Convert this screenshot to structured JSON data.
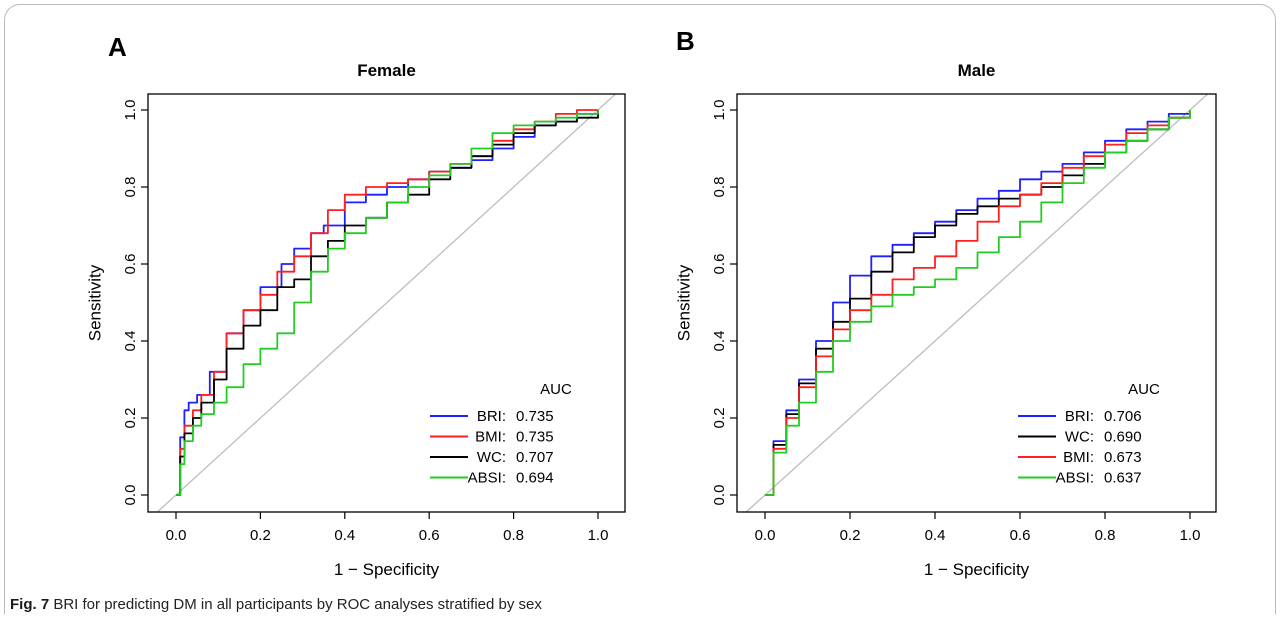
{
  "caption": {
    "label": "Fig. 7",
    "text": "BRI for predicting DM in all participants by ROC analyses stratified by sex"
  },
  "colors": {
    "BRI": "#1f1fff",
    "BMI": "#ff1f1f",
    "WC": "#000000",
    "ABSI": "#22cc22",
    "diagonal": "#bdbdbd"
  },
  "chart_data": [
    {
      "type": "line",
      "panel": "A",
      "title": "Female",
      "xlabel": "1 − Specificity",
      "ylabel": "Sensitivity",
      "xlim": [
        0,
        1
      ],
      "ylim": [
        0,
        1
      ],
      "xticks": [
        "0.0",
        "0.2",
        "0.4",
        "0.6",
        "0.8",
        "1.0"
      ],
      "yticks": [
        "0.0",
        "0.2",
        "0.4",
        "0.6",
        "0.8",
        "1.0"
      ],
      "legend": {
        "title": "AUC",
        "position": "bottom-right"
      },
      "diagonal": true,
      "series": [
        {
          "name": "BRI",
          "auc": "0.735",
          "color": "#1f1fff",
          "x": [
            0,
            0.01,
            0.02,
            0.03,
            0.05,
            0.08,
            0.12,
            0.16,
            0.2,
            0.25,
            0.28,
            0.32,
            0.35,
            0.4,
            0.45,
            0.5,
            0.55,
            0.6,
            0.65,
            0.7,
            0.75,
            0.8,
            0.85,
            0.9,
            0.95,
            1.0
          ],
          "y": [
            0,
            0.15,
            0.22,
            0.24,
            0.26,
            0.32,
            0.42,
            0.48,
            0.54,
            0.6,
            0.64,
            0.68,
            0.7,
            0.76,
            0.78,
            0.8,
            0.82,
            0.84,
            0.85,
            0.87,
            0.9,
            0.93,
            0.96,
            0.97,
            0.99,
            1.0
          ]
        },
        {
          "name": "BMI",
          "auc": "0.735",
          "color": "#ff1f1f",
          "x": [
            0,
            0.01,
            0.02,
            0.04,
            0.06,
            0.09,
            0.12,
            0.16,
            0.2,
            0.24,
            0.28,
            0.32,
            0.36,
            0.4,
            0.45,
            0.5,
            0.55,
            0.6,
            0.65,
            0.7,
            0.75,
            0.8,
            0.85,
            0.9,
            0.95,
            1.0
          ],
          "y": [
            0,
            0.12,
            0.18,
            0.22,
            0.26,
            0.32,
            0.42,
            0.48,
            0.52,
            0.58,
            0.62,
            0.68,
            0.74,
            0.78,
            0.8,
            0.81,
            0.82,
            0.84,
            0.86,
            0.88,
            0.92,
            0.95,
            0.97,
            0.99,
            1.0,
            1.0
          ]
        },
        {
          "name": "WC",
          "auc": "0.707",
          "color": "#000000",
          "x": [
            0,
            0.01,
            0.02,
            0.04,
            0.06,
            0.09,
            0.12,
            0.16,
            0.2,
            0.24,
            0.28,
            0.32,
            0.36,
            0.4,
            0.45,
            0.5,
            0.55,
            0.6,
            0.65,
            0.7,
            0.75,
            0.8,
            0.85,
            0.9,
            0.95,
            1.0
          ],
          "y": [
            0,
            0.1,
            0.16,
            0.2,
            0.24,
            0.3,
            0.38,
            0.44,
            0.48,
            0.54,
            0.56,
            0.62,
            0.66,
            0.7,
            0.72,
            0.76,
            0.78,
            0.82,
            0.85,
            0.88,
            0.91,
            0.94,
            0.96,
            0.97,
            0.98,
            1.0
          ]
        },
        {
          "name": "ABSI",
          "auc": "0.694",
          "color": "#22cc22",
          "x": [
            0,
            0.01,
            0.02,
            0.04,
            0.06,
            0.09,
            0.12,
            0.16,
            0.2,
            0.24,
            0.28,
            0.32,
            0.36,
            0.4,
            0.45,
            0.5,
            0.55,
            0.6,
            0.65,
            0.7,
            0.75,
            0.8,
            0.85,
            0.9,
            0.95,
            1.0
          ],
          "y": [
            0,
            0.08,
            0.14,
            0.18,
            0.21,
            0.24,
            0.28,
            0.34,
            0.38,
            0.42,
            0.5,
            0.58,
            0.64,
            0.68,
            0.72,
            0.76,
            0.8,
            0.83,
            0.86,
            0.9,
            0.94,
            0.96,
            0.97,
            0.98,
            0.99,
            1.0
          ]
        }
      ]
    },
    {
      "type": "line",
      "panel": "B",
      "title": "Male",
      "xlabel": "1 − Specificity",
      "ylabel": "Sensitivity",
      "xlim": [
        0,
        1
      ],
      "ylim": [
        0,
        1
      ],
      "xticks": [
        "0.0",
        "0.2",
        "0.4",
        "0.6",
        "0.8",
        "1.0"
      ],
      "yticks": [
        "0.0",
        "0.2",
        "0.4",
        "0.6",
        "0.8",
        "1.0"
      ],
      "legend": {
        "title": "AUC",
        "position": "bottom-right"
      },
      "diagonal": true,
      "series": [
        {
          "name": "BRI",
          "auc": "0.706",
          "color": "#1f1fff",
          "x": [
            0,
            0.02,
            0.05,
            0.08,
            0.12,
            0.16,
            0.2,
            0.25,
            0.3,
            0.35,
            0.4,
            0.45,
            0.5,
            0.55,
            0.6,
            0.65,
            0.7,
            0.75,
            0.8,
            0.85,
            0.9,
            0.95,
            1.0
          ],
          "y": [
            0,
            0.14,
            0.22,
            0.3,
            0.4,
            0.5,
            0.57,
            0.62,
            0.65,
            0.68,
            0.71,
            0.74,
            0.77,
            0.79,
            0.82,
            0.84,
            0.86,
            0.89,
            0.92,
            0.95,
            0.97,
            0.99,
            1.0
          ]
        },
        {
          "name": "WC",
          "auc": "0.690",
          "color": "#000000",
          "x": [
            0,
            0.02,
            0.05,
            0.08,
            0.12,
            0.16,
            0.2,
            0.25,
            0.3,
            0.35,
            0.4,
            0.45,
            0.5,
            0.55,
            0.6,
            0.65,
            0.7,
            0.75,
            0.8,
            0.85,
            0.9,
            0.95,
            1.0
          ],
          "y": [
            0,
            0.13,
            0.21,
            0.29,
            0.38,
            0.45,
            0.51,
            0.58,
            0.63,
            0.67,
            0.7,
            0.73,
            0.75,
            0.77,
            0.78,
            0.8,
            0.83,
            0.86,
            0.89,
            0.92,
            0.95,
            0.98,
            1.0
          ]
        },
        {
          "name": "BMI",
          "auc": "0.673",
          "color": "#ff1f1f",
          "x": [
            0,
            0.02,
            0.05,
            0.08,
            0.12,
            0.16,
            0.2,
            0.25,
            0.3,
            0.35,
            0.4,
            0.45,
            0.5,
            0.55,
            0.6,
            0.65,
            0.7,
            0.75,
            0.8,
            0.85,
            0.9,
            0.95,
            1.0
          ],
          "y": [
            0,
            0.12,
            0.2,
            0.28,
            0.36,
            0.43,
            0.48,
            0.52,
            0.56,
            0.59,
            0.62,
            0.66,
            0.71,
            0.75,
            0.78,
            0.81,
            0.85,
            0.88,
            0.91,
            0.94,
            0.96,
            0.98,
            1.0
          ]
        },
        {
          "name": "ABSI",
          "auc": "0.637",
          "color": "#22cc22",
          "x": [
            0,
            0.02,
            0.05,
            0.08,
            0.12,
            0.16,
            0.2,
            0.25,
            0.3,
            0.35,
            0.4,
            0.45,
            0.5,
            0.55,
            0.6,
            0.65,
            0.7,
            0.75,
            0.8,
            0.85,
            0.9,
            0.95,
            1.0
          ],
          "y": [
            0,
            0.11,
            0.18,
            0.24,
            0.32,
            0.4,
            0.45,
            0.49,
            0.52,
            0.54,
            0.56,
            0.59,
            0.63,
            0.67,
            0.71,
            0.76,
            0.81,
            0.85,
            0.89,
            0.92,
            0.95,
            0.98,
            1.0
          ]
        }
      ]
    }
  ]
}
